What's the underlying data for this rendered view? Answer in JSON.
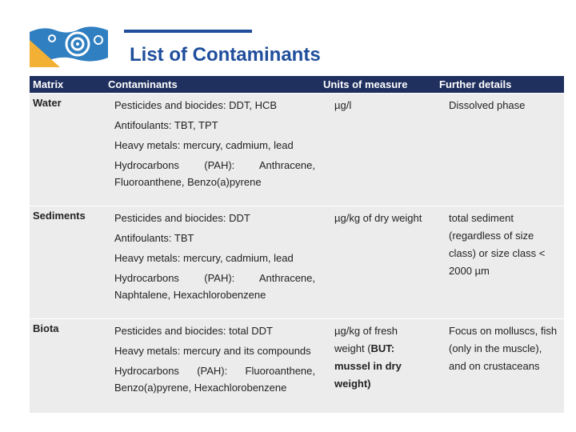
{
  "header": {
    "title": "List of Contaminants"
  },
  "table": {
    "columns": [
      "Matrix",
      "Contaminants",
      "Units of measure",
      "Further details"
    ],
    "rows": [
      {
        "matrix": "Water",
        "contaminants": [
          "Pesticides and biocides: DDT, HCB",
          "Antifoulants: TBT, TPT",
          "Heavy metals: mercury, cadmium, lead",
          "Hydrocarbons (PAH): Anthracene, Fluoroanthene, Benzo(a)pyrene"
        ],
        "units": [
          {
            "text": "µg/l",
            "bold": false
          }
        ],
        "details": "Dissolved phase"
      },
      {
        "matrix": "Sediments",
        "contaminants": [
          "Pesticides and biocides: DDT",
          "Antifoulants: TBT",
          "Heavy metals: mercury, cadmium, lead",
          "Hydrocarbons (PAH): Anthracene, Naphtalene, Hexachlorobenzene"
        ],
        "units": [
          {
            "text": "µg/kg of dry weight",
            "bold": false
          }
        ],
        "details": "total sediment (regardless of size class) or size class < 2000 µm"
      },
      {
        "matrix": "Biota",
        "contaminants": [
          "Pesticides and biocides: total DDT",
          "Heavy metals: mercury and its compounds",
          "Hydrocarbons (PAH): Fluoroanthene, Benzo(a)pyrene, Hexachlorobenzene"
        ],
        "units": [
          {
            "text": "µg/kg of fresh weight (",
            "bold": false
          },
          {
            "text": "BUT:",
            "bold": true
          },
          {
            "text": " mussel in dry weight)",
            "bold": true
          }
        ],
        "details": "Focus on molluscs, fish (only in the muscle), and on crustaceans"
      }
    ]
  }
}
